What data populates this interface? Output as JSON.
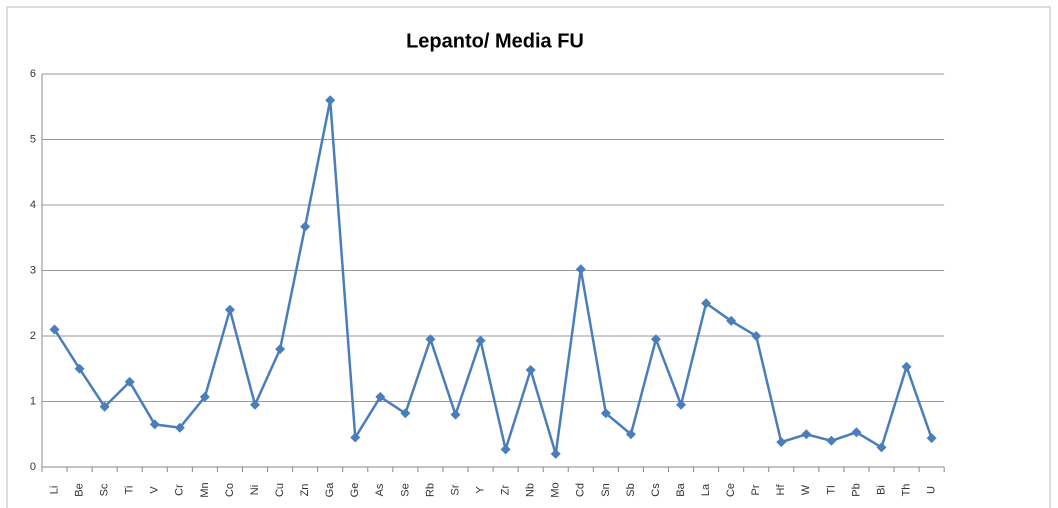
{
  "chart_data": {
    "type": "line",
    "title": "Lepanto/ Media FU",
    "categories": [
      "Li",
      "Be",
      "Sc",
      "Ti",
      "V",
      "Cr",
      "Mn",
      "Co",
      "Ni",
      "Cu",
      "Zn",
      "Ga",
      "Ge",
      "As",
      "Se",
      "Rb",
      "Sr",
      "Y",
      "Zr",
      "Nb",
      "Mo",
      "Cd",
      "Sn",
      "Sb",
      "Cs",
      "Ba",
      "La",
      "Ce",
      "Pr",
      "Hf",
      "W",
      "Tl",
      "Pb",
      "Bi",
      "Th",
      "U"
    ],
    "series": [
      {
        "name": "Lepanto/ Media FU",
        "color": "#4a7ebb",
        "values": [
          2.1,
          1.5,
          0.92,
          1.3,
          0.65,
          0.6,
          1.07,
          2.4,
          0.95,
          1.8,
          3.67,
          5.6,
          0.45,
          1.07,
          0.82,
          1.95,
          0.8,
          1.93,
          0.27,
          1.48,
          0.2,
          3.02,
          0.82,
          0.5,
          1.95,
          0.95,
          2.5,
          2.23,
          2.0,
          0.38,
          0.5,
          0.4,
          0.53,
          0.3,
          1.53,
          0.44
        ]
      }
    ],
    "ylim": [
      0,
      6
    ],
    "yticks": [
      0,
      1,
      2,
      3,
      4,
      5,
      6
    ],
    "grid": true
  }
}
